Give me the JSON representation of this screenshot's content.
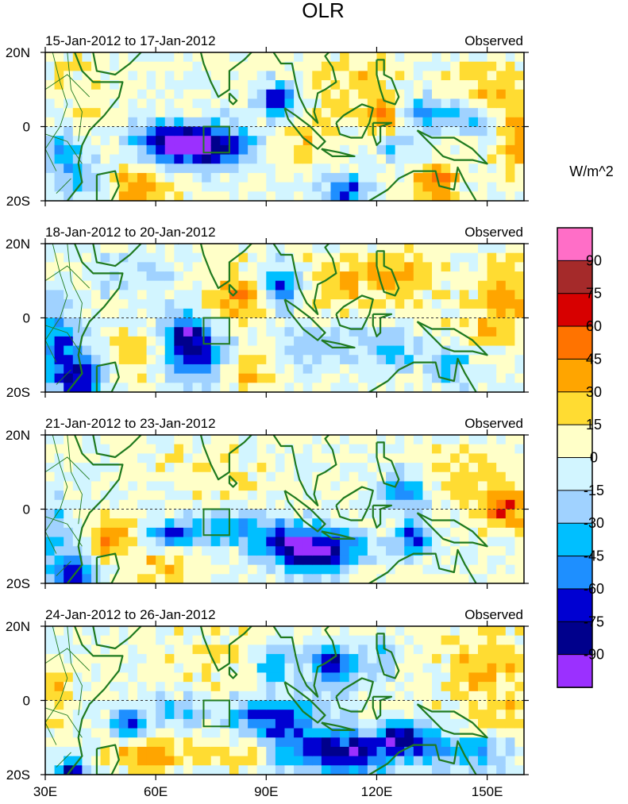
{
  "chart_data": {
    "type": "heatmap",
    "title": "OLR",
    "units": "W/m^2",
    "colorbar": {
      "labels": [
        "90",
        "75",
        "60",
        "45",
        "30",
        "15",
        "0",
        "-15",
        "-30",
        "-45",
        "-60",
        "-75",
        "-90"
      ],
      "colors": [
        "#ff6ec7",
        "#a52a2a",
        "#d70000",
        "#ff7300",
        "#ffa500",
        "#ffdc32",
        "#ffffc8",
        "#d2f5ff",
        "#a0d2ff",
        "#00bfff",
        "#1e8fff",
        "#0000d2",
        "#00008c",
        "#9b30ff"
      ]
    },
    "x_ticks": [
      "30E",
      "60E",
      "90E",
      "120E",
      "150E"
    ],
    "x_tick_values": [
      30,
      60,
      90,
      120,
      150
    ],
    "xlim": [
      30,
      160
    ],
    "y_ticks": [
      "20N",
      "0",
      "20S"
    ],
    "y_tick_values": [
      20,
      0,
      -20
    ],
    "ylim": [
      -20,
      20
    ],
    "panels": [
      {
        "label": "15-Jan-2012 to 17-Jan-2012",
        "source": "Observed",
        "anomalies": [
          {
            "lon": 72,
            "lat": -5,
            "sx": 8,
            "sy": 3.5,
            "v": -85
          },
          {
            "lon": 64,
            "lat": -4,
            "sx": 7,
            "sy": 4,
            "v": -55
          },
          {
            "lon": 81,
            "lat": -6,
            "sx": 6,
            "sy": 4,
            "v": -25
          },
          {
            "lon": 93,
            "lat": 7,
            "sx": 3.5,
            "sy": 3,
            "v": -80
          },
          {
            "lon": 35,
            "lat": -8,
            "sx": 4,
            "sy": 5,
            "v": -45
          },
          {
            "lon": 44,
            "lat": -15,
            "sx": 4,
            "sy": 4,
            "v": -30
          },
          {
            "lon": 133,
            "lat": 4,
            "sx": 5,
            "sy": 3,
            "v": -45
          },
          {
            "lon": 146,
            "lat": 2,
            "sx": 6,
            "sy": 3,
            "v": -35
          },
          {
            "lon": 112,
            "lat": -17,
            "sx": 4,
            "sy": 3,
            "v": -65
          },
          {
            "lon": 125,
            "lat": -5,
            "sx": 4,
            "sy": 3,
            "v": -25
          },
          {
            "lon": 55,
            "lat": -16,
            "sx": 6,
            "sy": 4,
            "v": 45
          },
          {
            "lon": 136,
            "lat": -15,
            "sx": 4,
            "sy": 3,
            "v": 55
          },
          {
            "lon": 122,
            "lat": 2,
            "sx": 4,
            "sy": 3,
            "v": 40
          },
          {
            "lon": 114,
            "lat": 12,
            "sx": 9,
            "sy": 6,
            "v": 22
          },
          {
            "lon": 150,
            "lat": 10,
            "sx": 8,
            "sy": 6,
            "v": 22
          },
          {
            "lon": 158,
            "lat": -5,
            "sx": 4,
            "sy": 6,
            "v": 40
          },
          {
            "lon": 100,
            "lat": -3,
            "sx": 8,
            "sy": 5,
            "v": 18
          },
          {
            "lon": 40,
            "lat": 8,
            "sx": 6,
            "sy": 6,
            "v": 15
          }
        ]
      },
      {
        "label": "18-Jan-2012 to 20-Jan-2012",
        "source": "Observed",
        "anomalies": [
          {
            "lon": 71,
            "lat": -10,
            "sx": 5,
            "sy": 6,
            "v": -70
          },
          {
            "lon": 67,
            "lat": -4,
            "sx": 4,
            "sy": 4,
            "v": -50
          },
          {
            "lon": 34,
            "lat": -6,
            "sx": 4,
            "sy": 6,
            "v": -55
          },
          {
            "lon": 39,
            "lat": -16,
            "sx": 5,
            "sy": 4,
            "v": -75
          },
          {
            "lon": 94,
            "lat": 8,
            "sx": 3,
            "sy": 4,
            "v": -65
          },
          {
            "lon": 105,
            "lat": -8,
            "sx": 8,
            "sy": 4,
            "v": -25
          },
          {
            "lon": 125,
            "lat": -9,
            "sx": 5,
            "sy": 4,
            "v": -30
          },
          {
            "lon": 140,
            "lat": -12,
            "sx": 4,
            "sy": 4,
            "v": -40
          },
          {
            "lon": 55,
            "lat": 12,
            "sx": 7,
            "sy": 4,
            "v": -20
          },
          {
            "lon": 81,
            "lat": 5,
            "sx": 6,
            "sy": 5,
            "v": 38
          },
          {
            "lon": 110,
            "lat": 10,
            "sx": 7,
            "sy": 5,
            "v": 28
          },
          {
            "lon": 126,
            "lat": 12,
            "sx": 6,
            "sy": 5,
            "v": 35
          },
          {
            "lon": 155,
            "lat": 5,
            "sx": 5,
            "sy": 7,
            "v": 40
          },
          {
            "lon": 55,
            "lat": -10,
            "sx": 5,
            "sy": 5,
            "v": 20
          },
          {
            "lon": 85,
            "lat": -15,
            "sx": 5,
            "sy": 3,
            "v": 25
          },
          {
            "lon": 145,
            "lat": -5,
            "sx": 5,
            "sy": 4,
            "v": 15
          }
        ]
      },
      {
        "label": "21-Jan-2012 to 23-Jan-2012",
        "source": "Observed",
        "anomalies": [
          {
            "lon": 106,
            "lat": -12,
            "sx": 8,
            "sy": 4,
            "v": -85
          },
          {
            "lon": 96,
            "lat": -9,
            "sx": 6,
            "sy": 4,
            "v": -60
          },
          {
            "lon": 80,
            "lat": -5,
            "sx": 8,
            "sy": 3.5,
            "v": -40
          },
          {
            "lon": 65,
            "lat": -7,
            "sx": 5,
            "sy": 2.5,
            "v": -55
          },
          {
            "lon": 130,
            "lat": -8,
            "sx": 3,
            "sy": 3,
            "v": -70
          },
          {
            "lon": 127,
            "lat": 5,
            "sx": 4,
            "sy": 3,
            "v": -55
          },
          {
            "lon": 37,
            "lat": -18,
            "sx": 4,
            "sy": 4,
            "v": -80
          },
          {
            "lon": 33,
            "lat": -6,
            "sx": 3,
            "sy": 5,
            "v": -30
          },
          {
            "lon": 48,
            "lat": -8,
            "sx": 4,
            "sy": 4,
            "v": 38
          },
          {
            "lon": 62,
            "lat": -16,
            "sx": 5,
            "sy": 3,
            "v": 30
          },
          {
            "lon": 155,
            "lat": 0,
            "sx": 5,
            "sy": 4,
            "v": 55
          },
          {
            "lon": 145,
            "lat": 10,
            "sx": 7,
            "sy": 5,
            "v": 22
          },
          {
            "lon": 75,
            "lat": 10,
            "sx": 8,
            "sy": 6,
            "v": 15
          },
          {
            "lon": 115,
            "lat": -17,
            "sx": 5,
            "sy": 3,
            "v": 20
          }
        ]
      },
      {
        "label": "24-Jan-2012 to 26-Jan-2012",
        "source": "Observed",
        "anomalies": [
          {
            "lon": 110,
            "lat": -14,
            "sx": 12,
            "sy": 4,
            "v": -85
          },
          {
            "lon": 92,
            "lat": -5,
            "sx": 9,
            "sy": 4,
            "v": -65
          },
          {
            "lon": 128,
            "lat": -10,
            "sx": 5,
            "sy": 3,
            "v": -70
          },
          {
            "lon": 145,
            "lat": -14,
            "sx": 8,
            "sy": 3,
            "v": -45
          },
          {
            "lon": 108,
            "lat": 9,
            "sx": 4,
            "sy": 4,
            "v": -75
          },
          {
            "lon": 52,
            "lat": -6,
            "sx": 3,
            "sy": 3,
            "v": -65
          },
          {
            "lon": 65,
            "lat": -3,
            "sx": 5,
            "sy": 3,
            "v": -30
          },
          {
            "lon": 37,
            "lat": -20,
            "sx": 3,
            "sy": 3,
            "v": -85
          },
          {
            "lon": 92,
            "lat": 10,
            "sx": 4,
            "sy": 4,
            "v": -35
          },
          {
            "lon": 120,
            "lat": 12,
            "sx": 4,
            "sy": 4,
            "v": -25
          },
          {
            "lon": 58,
            "lat": -15,
            "sx": 8,
            "sy": 3,
            "v": 35
          },
          {
            "lon": 85,
            "lat": -14,
            "sx": 6,
            "sy": 3,
            "v": 25
          },
          {
            "lon": 150,
            "lat": 8,
            "sx": 8,
            "sy": 7,
            "v": 28
          },
          {
            "lon": 33,
            "lat": 2,
            "sx": 3,
            "sy": 5,
            "v": 30
          },
          {
            "lon": 155,
            "lat": -5,
            "sx": 4,
            "sy": 4,
            "v": 20
          },
          {
            "lon": 75,
            "lat": 12,
            "sx": 8,
            "sy": 5,
            "v": 15
          }
        ]
      }
    ]
  }
}
